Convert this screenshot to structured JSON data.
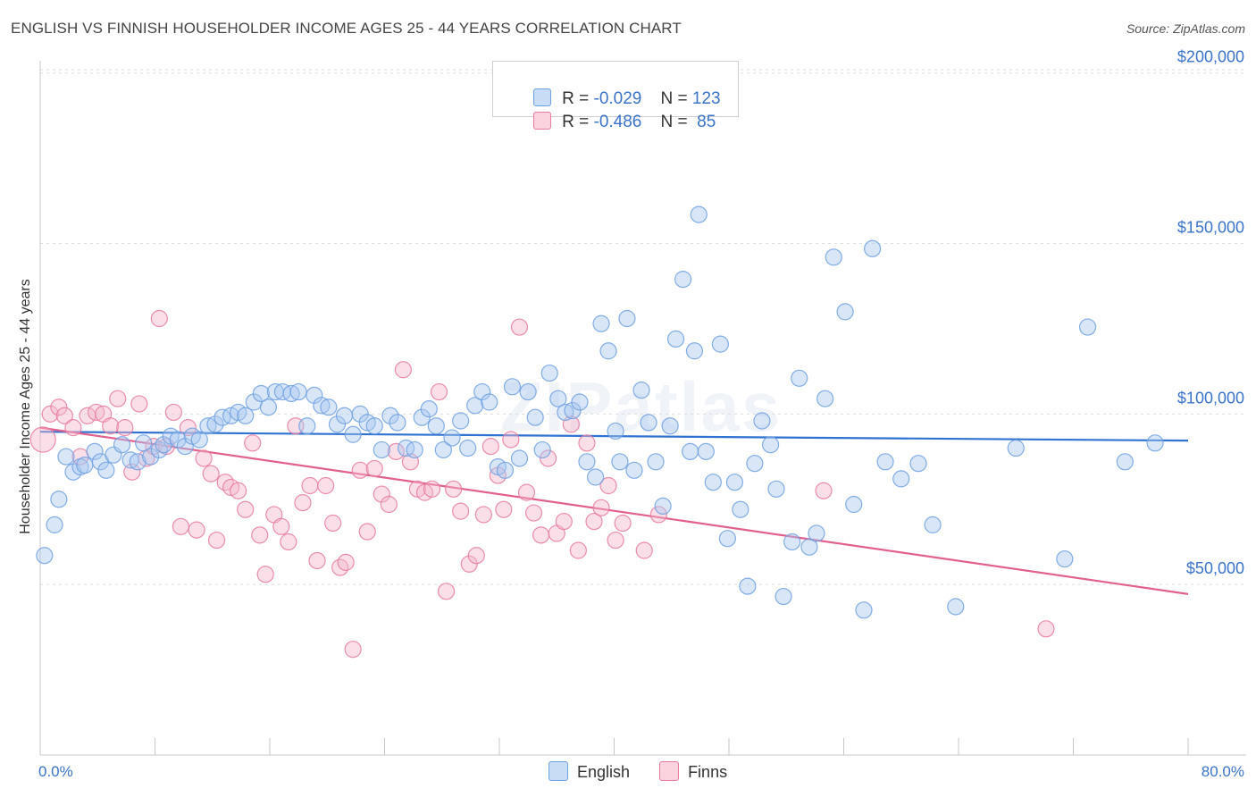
{
  "header": {
    "title": "ENGLISH VS FINNISH HOUSEHOLDER INCOME AGES 25 - 44 YEARS CORRELATION CHART",
    "source": "Source: ZipAtlas.com"
  },
  "watermark": "ZIPatlas",
  "legend": {
    "rows": [
      {
        "r_label": "R = ",
        "r_value": "-0.029",
        "n_label": "N = ",
        "n_value": "123",
        "color": "#a9c8f0"
      },
      {
        "r_label": "R = ",
        "r_value": "-0.486",
        "n_label": "N = ",
        "n_value": " 85",
        "color": "#f5b8cb"
      }
    ]
  },
  "bottom_legend": [
    {
      "label": "English",
      "color": "#a9c8f0"
    },
    {
      "label": "Finns",
      "color": "#f5b8cb"
    }
  ],
  "chart_data": {
    "type": "scatter",
    "title": "ENGLISH VS FINNISH HOUSEHOLDER INCOME AGES 25 - 44 YEARS CORRELATION CHART",
    "ylabel": "Householder Income Ages 25 - 44 years",
    "xlabel": "",
    "xlim": [
      0,
      80
    ],
    "ylim": [
      0,
      210000
    ],
    "x_tick_labels": [
      "0.0%",
      "80.0%"
    ],
    "y_tick_values": [
      50000,
      100000,
      150000,
      200000
    ],
    "y_tick_labels": [
      "$50,000",
      "$100,000",
      "$150,000",
      "$200,000"
    ],
    "grid": "horizontal dashed",
    "legend_position": "top-center",
    "series": [
      {
        "name": "English",
        "color": "#6fa0e0",
        "fill": "#a9c8f0",
        "trend": [
          [
            0,
            94800
          ],
          [
            80,
            92200
          ]
        ],
        "points": [
          [
            0.3,
            58500
          ],
          [
            1.0,
            67500
          ],
          [
            1.3,
            75000
          ],
          [
            1.8,
            87500
          ],
          [
            2.3,
            83000
          ],
          [
            2.8,
            84500
          ],
          [
            3.1,
            85000
          ],
          [
            3.8,
            89000
          ],
          [
            4.2,
            86000
          ],
          [
            4.6,
            83500
          ],
          [
            5.1,
            88000
          ],
          [
            5.7,
            91000
          ],
          [
            6.3,
            86500
          ],
          [
            6.8,
            86000
          ],
          [
            7.2,
            91500
          ],
          [
            7.7,
            87500
          ],
          [
            8.3,
            89500
          ],
          [
            8.6,
            91000
          ],
          [
            9.1,
            93500
          ],
          [
            9.6,
            92500
          ],
          [
            10.1,
            90500
          ],
          [
            10.6,
            93500
          ],
          [
            11.1,
            92500
          ],
          [
            11.7,
            96500
          ],
          [
            12.2,
            97000
          ],
          [
            12.7,
            99000
          ],
          [
            13.3,
            99500
          ],
          [
            13.8,
            100500
          ],
          [
            14.3,
            99500
          ],
          [
            14.9,
            103500
          ],
          [
            15.4,
            106000
          ],
          [
            15.9,
            102000
          ],
          [
            16.4,
            106500
          ],
          [
            16.9,
            106500
          ],
          [
            17.5,
            106000
          ],
          [
            18.0,
            106500
          ],
          [
            18.6,
            96500
          ],
          [
            19.1,
            105500
          ],
          [
            19.6,
            102500
          ],
          [
            20.1,
            102000
          ],
          [
            20.7,
            97000
          ],
          [
            21.2,
            99500
          ],
          [
            21.8,
            94000
          ],
          [
            22.3,
            100000
          ],
          [
            22.8,
            97500
          ],
          [
            23.3,
            96500
          ],
          [
            23.8,
            89500
          ],
          [
            24.4,
            99500
          ],
          [
            24.9,
            97500
          ],
          [
            25.5,
            90000
          ],
          [
            26.1,
            89500
          ],
          [
            26.6,
            99000
          ],
          [
            27.1,
            101500
          ],
          [
            27.6,
            96500
          ],
          [
            28.1,
            89500
          ],
          [
            28.7,
            93000
          ],
          [
            29.3,
            98000
          ],
          [
            29.8,
            90000
          ],
          [
            30.3,
            102500
          ],
          [
            30.8,
            106500
          ],
          [
            31.3,
            103500
          ],
          [
            31.9,
            84500
          ],
          [
            32.4,
            83500
          ],
          [
            32.9,
            108000
          ],
          [
            33.4,
            87000
          ],
          [
            34.0,
            106500
          ],
          [
            34.5,
            99000
          ],
          [
            35.0,
            89500
          ],
          [
            35.5,
            112000
          ],
          [
            36.1,
            104500
          ],
          [
            36.6,
            100500
          ],
          [
            37.1,
            101000
          ],
          [
            37.6,
            103500
          ],
          [
            38.1,
            86000
          ],
          [
            38.7,
            81500
          ],
          [
            39.1,
            126500
          ],
          [
            39.6,
            118500
          ],
          [
            40.1,
            95000
          ],
          [
            40.4,
            86000
          ],
          [
            40.9,
            128000
          ],
          [
            41.4,
            83500
          ],
          [
            41.9,
            107000
          ],
          [
            42.4,
            97500
          ],
          [
            42.9,
            86000
          ],
          [
            43.4,
            73000
          ],
          [
            43.9,
            96500
          ],
          [
            44.3,
            122000
          ],
          [
            44.8,
            139500
          ],
          [
            45.3,
            89000
          ],
          [
            45.6,
            118500
          ],
          [
            45.9,
            158500
          ],
          [
            46.4,
            89000
          ],
          [
            46.9,
            80000
          ],
          [
            47.4,
            120500
          ],
          [
            47.9,
            63500
          ],
          [
            48.4,
            80000
          ],
          [
            48.8,
            72000
          ],
          [
            49.3,
            49500
          ],
          [
            49.8,
            85500
          ],
          [
            50.3,
            98000
          ],
          [
            50.9,
            91000
          ],
          [
            51.3,
            78000
          ],
          [
            51.8,
            46500
          ],
          [
            52.4,
            62500
          ],
          [
            52.9,
            110500
          ],
          [
            53.6,
            61000
          ],
          [
            54.1,
            65000
          ],
          [
            54.7,
            104500
          ],
          [
            55.3,
            146000
          ],
          [
            56.1,
            130000
          ],
          [
            56.7,
            73500
          ],
          [
            57.4,
            42500
          ],
          [
            58.0,
            148500
          ],
          [
            58.9,
            86000
          ],
          [
            60.0,
            81000
          ],
          [
            61.2,
            85500
          ],
          [
            62.2,
            67500
          ],
          [
            63.8,
            43500
          ],
          [
            68.0,
            90000
          ],
          [
            71.4,
            57500
          ],
          [
            73.0,
            125500
          ],
          [
            75.6,
            86000
          ],
          [
            77.7,
            91500
          ]
        ]
      },
      {
        "name": "Finns",
        "color": "#e87aa0",
        "fill": "#f5b8cb",
        "trend": [
          [
            0,
            96000
          ],
          [
            80,
            47200
          ]
        ],
        "points": [
          [
            0.2,
            92500
          ],
          [
            0.7,
            100000
          ],
          [
            1.3,
            102000
          ],
          [
            1.7,
            99500
          ],
          [
            2.3,
            96000
          ],
          [
            2.8,
            87500
          ],
          [
            3.3,
            99500
          ],
          [
            3.9,
            100500
          ],
          [
            4.4,
            100000
          ],
          [
            4.9,
            96500
          ],
          [
            5.4,
            104500
          ],
          [
            5.9,
            96000
          ],
          [
            6.4,
            83000
          ],
          [
            6.9,
            103000
          ],
          [
            7.4,
            87000
          ],
          [
            7.9,
            90500
          ],
          [
            8.3,
            128000
          ],
          [
            8.8,
            90500
          ],
          [
            9.3,
            100500
          ],
          [
            9.8,
            67000
          ],
          [
            10.3,
            96000
          ],
          [
            10.9,
            66000
          ],
          [
            11.4,
            87000
          ],
          [
            11.9,
            82500
          ],
          [
            12.3,
            63000
          ],
          [
            12.9,
            80000
          ],
          [
            13.3,
            78500
          ],
          [
            13.8,
            77500
          ],
          [
            14.3,
            72000
          ],
          [
            14.8,
            91500
          ],
          [
            15.3,
            64500
          ],
          [
            15.7,
            53000
          ],
          [
            16.3,
            70500
          ],
          [
            16.8,
            67000
          ],
          [
            17.3,
            62500
          ],
          [
            17.8,
            96500
          ],
          [
            18.3,
            74000
          ],
          [
            18.8,
            79000
          ],
          [
            19.3,
            57000
          ],
          [
            19.9,
            79000
          ],
          [
            20.4,
            68000
          ],
          [
            20.9,
            55000
          ],
          [
            21.3,
            56500
          ],
          [
            21.8,
            31000
          ],
          [
            22.3,
            83500
          ],
          [
            22.8,
            65500
          ],
          [
            23.3,
            84000
          ],
          [
            23.8,
            76500
          ],
          [
            24.3,
            73500
          ],
          [
            24.8,
            89000
          ],
          [
            25.3,
            113000
          ],
          [
            25.8,
            86000
          ],
          [
            26.3,
            78000
          ],
          [
            26.8,
            77000
          ],
          [
            27.3,
            78000
          ],
          [
            27.8,
            106500
          ],
          [
            28.3,
            48000
          ],
          [
            28.8,
            78000
          ],
          [
            29.3,
            71500
          ],
          [
            29.9,
            56000
          ],
          [
            30.4,
            58500
          ],
          [
            30.9,
            70500
          ],
          [
            31.4,
            90500
          ],
          [
            31.9,
            82000
          ],
          [
            32.3,
            72000
          ],
          [
            32.8,
            92500
          ],
          [
            33.4,
            125500
          ],
          [
            33.9,
            77000
          ],
          [
            34.4,
            71000
          ],
          [
            34.9,
            64500
          ],
          [
            35.4,
            87000
          ],
          [
            36.0,
            65000
          ],
          [
            36.5,
            68500
          ],
          [
            37.0,
            97000
          ],
          [
            37.5,
            60000
          ],
          [
            38.1,
            91500
          ],
          [
            38.6,
            68500
          ],
          [
            39.1,
            72500
          ],
          [
            39.6,
            79000
          ],
          [
            40.1,
            63000
          ],
          [
            40.6,
            68000
          ],
          [
            42.1,
            60000
          ],
          [
            43.1,
            70500
          ],
          [
            54.6,
            77500
          ],
          [
            70.1,
            37000
          ]
        ]
      }
    ]
  }
}
